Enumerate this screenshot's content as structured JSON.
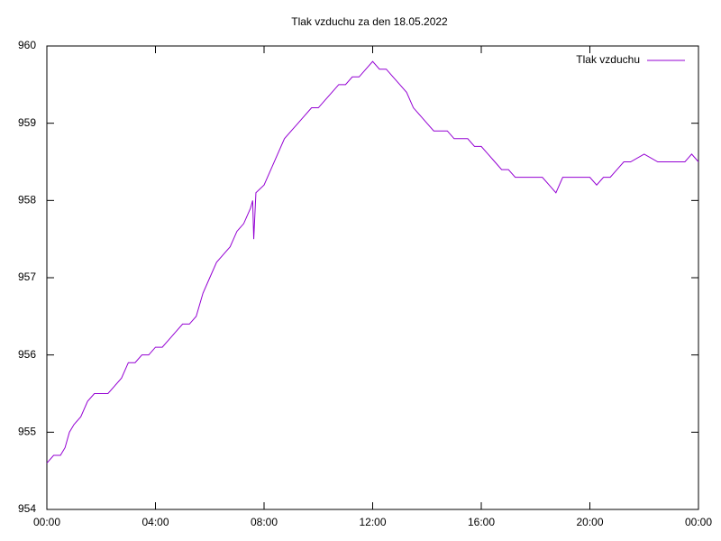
{
  "chart_data": {
    "type": "line",
    "title": "Tlak vzduchu za den 18.05.2022",
    "x": [
      0,
      0.25,
      0.5,
      0.67,
      0.83,
      1,
      1.25,
      1.5,
      1.75,
      2,
      2.25,
      2.5,
      2.75,
      3,
      3.25,
      3.5,
      3.75,
      4,
      4.25,
      4.5,
      4.75,
      5,
      5.25,
      5.5,
      5.75,
      6,
      6.25,
      6.5,
      6.75,
      7,
      7.25,
      7.5,
      7.58,
      7.62,
      7.7,
      8,
      8.25,
      8.5,
      8.75,
      9,
      9.25,
      9.5,
      9.75,
      10,
      10.25,
      10.5,
      10.75,
      11,
      11.25,
      11.5,
      11.75,
      12,
      12.25,
      12.5,
      12.75,
      13,
      13.25,
      13.5,
      13.75,
      14,
      14.25,
      14.5,
      14.75,
      15,
      15.25,
      15.5,
      15.75,
      16,
      16.25,
      16.5,
      16.75,
      17,
      17.25,
      17.5,
      17.75,
      18,
      18.25,
      18.5,
      18.75,
      19,
      19.5,
      20,
      20.25,
      20.5,
      20.75,
      21,
      21.25,
      21.5,
      22,
      22.5,
      22.75,
      23,
      23.5,
      23.75,
      24
    ],
    "series": [
      {
        "name": "Tlak vzduchu",
        "color": "#9400d3",
        "values": [
          954.6,
          954.7,
          954.7,
          954.8,
          955.0,
          955.1,
          955.2,
          955.4,
          955.5,
          955.5,
          955.5,
          955.6,
          955.7,
          955.9,
          955.9,
          956.0,
          956.0,
          956.1,
          956.1,
          956.2,
          956.3,
          956.4,
          956.4,
          956.5,
          956.8,
          957.0,
          957.2,
          957.3,
          957.4,
          957.6,
          957.7,
          957.9,
          958.0,
          957.5,
          958.1,
          958.2,
          958.4,
          958.6,
          958.8,
          958.9,
          959.0,
          959.1,
          959.2,
          959.2,
          959.3,
          959.4,
          959.5,
          959.5,
          959.6,
          959.6,
          959.7,
          959.8,
          959.7,
          959.7,
          959.6,
          959.5,
          959.4,
          959.2,
          959.1,
          959.0,
          958.9,
          958.9,
          958.9,
          958.8,
          958.8,
          958.8,
          958.7,
          958.7,
          958.6,
          958.5,
          958.4,
          958.4,
          958.3,
          958.3,
          958.3,
          958.3,
          958.3,
          958.2,
          958.1,
          958.3,
          958.3,
          958.3,
          958.2,
          958.3,
          958.3,
          958.4,
          958.5,
          958.5,
          958.6,
          958.5,
          958.5,
          958.5,
          958.5,
          958.6,
          958.5
        ]
      }
    ],
    "xlim": [
      0,
      24
    ],
    "xticks": [
      {
        "value": 0,
        "label": "00:00"
      },
      {
        "value": 4,
        "label": "04:00"
      },
      {
        "value": 8,
        "label": "08:00"
      },
      {
        "value": 12,
        "label": "12:00"
      },
      {
        "value": 16,
        "label": "16:00"
      },
      {
        "value": 20,
        "label": "20:00"
      },
      {
        "value": 24,
        "label": "00:00"
      }
    ],
    "ylim": [
      954,
      960
    ],
    "yticks": [
      954,
      955,
      956,
      957,
      958,
      959,
      960
    ],
    "grid": false,
    "legend": "top-right"
  }
}
